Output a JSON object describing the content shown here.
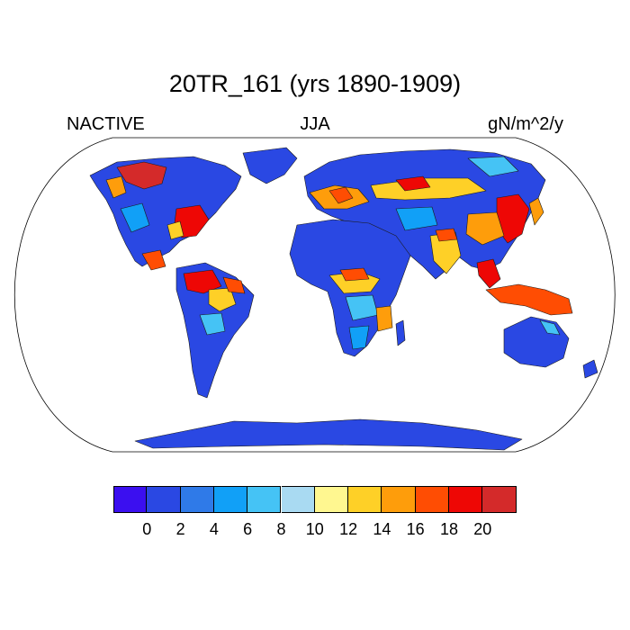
{
  "header": {
    "title": "20TR_161 (yrs 1890-1909)",
    "left_label": "NACTIVE",
    "center_label": "JJA",
    "right_label": "gN/m^2/y"
  },
  "map": {
    "projection": "Robinson",
    "region": "global",
    "continent_outlines": true
  },
  "colorbar": {
    "colors": [
      "#3b0ff0",
      "#2a48e3",
      "#2f7ae8",
      "#11a0f7",
      "#45c3f5",
      "#a9daf2",
      "#fff790",
      "#fed027",
      "#fe9d0b",
      "#ff4d03",
      "#ee0705",
      "#d42a2a"
    ],
    "tick_labels": [
      "0",
      "2",
      "4",
      "6",
      "8",
      "10",
      "12",
      "14",
      "16",
      "18",
      "20"
    ],
    "boundaries": [
      0,
      2,
      4,
      6,
      8,
      10,
      12,
      14,
      16,
      18,
      20
    ]
  }
}
